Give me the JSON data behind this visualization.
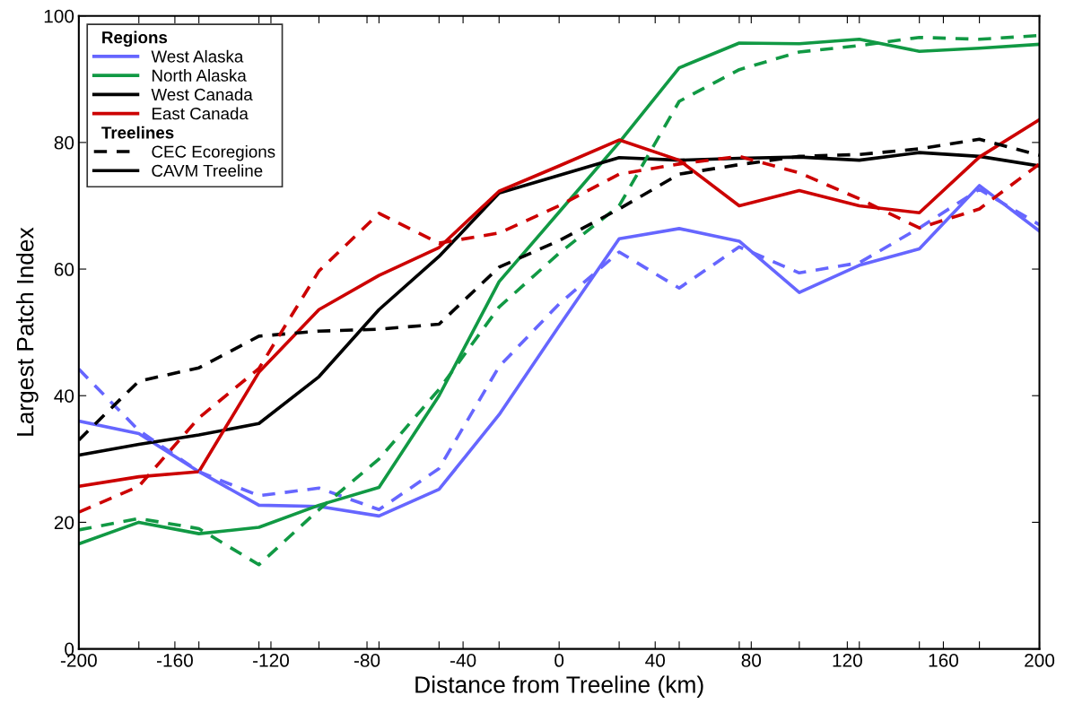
{
  "chart_data": {
    "type": "line",
    "xlabel": "Distance from Treeline (km)",
    "ylabel": "Largest Patch Index",
    "x": [
      -200,
      -175,
      -150,
      -125,
      -100,
      -75,
      -50,
      -25,
      0,
      25,
      50,
      75,
      100,
      125,
      150,
      175,
      200
    ],
    "series": [
      {
        "name": "West Alaska",
        "color": "#6666ff",
        "line_style": "solid",
        "values": [
          36,
          34,
          28,
          22.7,
          22.5,
          21,
          25.2,
          37,
          51,
          64.8,
          66.4,
          64.4,
          56.3,
          60.6,
          63.2,
          73.2,
          66
        ]
      },
      {
        "name": "North Alaska",
        "color": "#119944",
        "line_style": "solid",
        "values": [
          16.6,
          20,
          18.2,
          19.2,
          22.7,
          25.5,
          40,
          58,
          69,
          80,
          91.8,
          95.7,
          95.6,
          96.3,
          94.4,
          94.9,
          95.5
        ]
      },
      {
        "name": "West Canada",
        "color": "#000000",
        "line_style": "solid",
        "values": [
          30.6,
          32.3,
          33.8,
          35.6,
          43,
          53.6,
          62,
          72,
          74.8,
          77.6,
          77.2,
          77.5,
          77.7,
          77.2,
          78.4,
          77.8,
          76.3
        ]
      },
      {
        "name": "East Canada",
        "color": "#cc0000",
        "line_style": "solid",
        "values": [
          25.7,
          27.2,
          28,
          43.7,
          53.6,
          59,
          63.4,
          72.3,
          76.3,
          80.4,
          77.2,
          70,
          72.4,
          70,
          68.9,
          77.7,
          83.6
        ]
      },
      {
        "color": "#6666ff",
        "line_style": "dashed",
        "values": [
          44.2,
          34.5,
          28,
          24.2,
          25.4,
          22,
          28.5,
          44.6,
          54.5,
          62.7,
          57,
          63.5,
          59.4,
          61,
          66.5,
          72.6,
          67
        ]
      },
      {
        "color": "#119944",
        "line_style": "dashed",
        "values": [
          18.8,
          20.6,
          19,
          13.3,
          22,
          30,
          41,
          54,
          62.5,
          70,
          86.5,
          91.5,
          94.3,
          95.3,
          96.6,
          96.3,
          96.9
        ]
      },
      {
        "color": "#000000",
        "line_style": "dashed",
        "values": [
          33,
          42.3,
          44.4,
          49.4,
          50.2,
          50.5,
          51.3,
          60.3,
          64.5,
          69.5,
          75,
          76.5,
          77.8,
          78.1,
          79,
          80.5,
          78
        ]
      },
      {
        "color": "#cc0000",
        "line_style": "dashed",
        "values": [
          21.6,
          25.7,
          36.5,
          44.3,
          59.7,
          68.8,
          64.1,
          65.7,
          70,
          75,
          76.6,
          77.8,
          75.2,
          71.1,
          66.5,
          69.5,
          76.6
        ]
      }
    ],
    "legend": "top left",
    "legend_title": "Regions",
    "annotations": [
      "Treelines",
      "CEC Ecoregions",
      "CAVM Treeline"
    ],
    "xlim": [
      -200,
      200
    ],
    "xticks": [
      -200,
      {
        "value": -175,
        "label": null
      },
      -160,
      {
        "value": -150,
        "label": null
      },
      {
        "value": -125,
        "label": null
      },
      -120,
      {
        "value": -100,
        "label": null
      },
      -80,
      {
        "value": -75,
        "label": null
      },
      {
        "value": -50,
        "label": null
      },
      -40,
      {
        "value": -25,
        "label": null
      },
      0,
      {
        "value": 25,
        "label": null
      },
      40,
      {
        "value": 50,
        "label": null
      },
      {
        "value": 75,
        "label": null
      },
      80,
      {
        "value": 100,
        "label": null
      },
      120,
      {
        "value": 125,
        "label": null
      },
      {
        "value": 150,
        "label": null
      },
      160,
      {
        "value": 175,
        "label": null
      },
      200
    ],
    "ylim": [
      0,
      100
    ],
    "yticks": [
      0,
      20,
      40,
      60,
      80,
      100
    ],
    "grid": false
  }
}
